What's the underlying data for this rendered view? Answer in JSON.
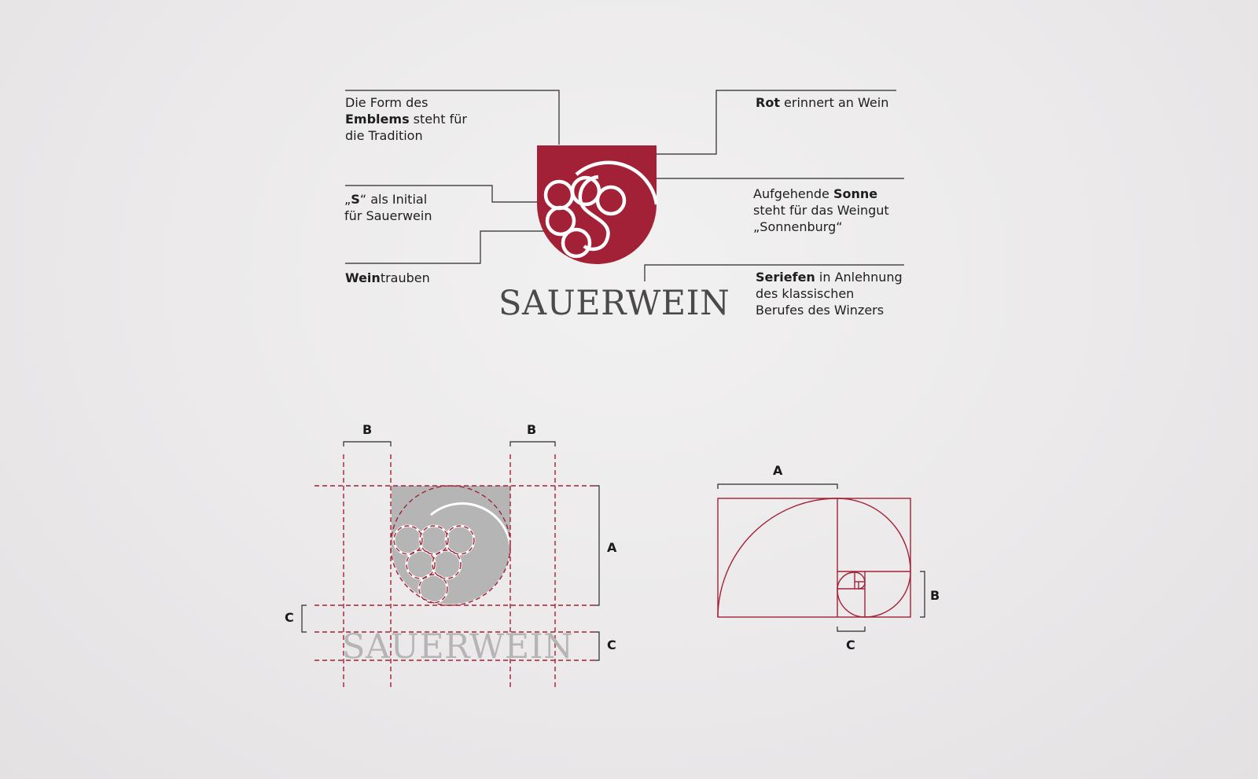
{
  "logo": {
    "wordmark": "SAUERWEIN",
    "colors": {
      "brand_red": "#a32136",
      "text_gray": "#4a4a4a",
      "guide_red": "#a32136",
      "construction_gray": "#b5b5b5"
    }
  },
  "annotations": {
    "emblem": {
      "line1": "Die Form des",
      "bold": "Emblems",
      "rest": " steht für",
      "line3": "die Tradition"
    },
    "initial": {
      "prefix": "„",
      "bold": "S",
      "rest": "“ als Initial",
      "line2": "für Sauerwein"
    },
    "grapes": {
      "bold": "Wein",
      "rest": "trauben"
    },
    "red": {
      "bold": "Rot",
      "rest": " erinnert an Wein"
    },
    "sun": {
      "line1_prefix": "Aufgehende ",
      "bold": "Sonne",
      "line2": "steht für das Weingut",
      "line3": "„Sonnenburg“"
    },
    "serif": {
      "bold": "Seriefen",
      "rest": " in Anlehnung",
      "line2": "des klassischen",
      "line3": "Berufes des Winzers"
    }
  },
  "construction": {
    "labels": {
      "b_left": "B",
      "b_right": "B",
      "a": "A",
      "c_left": "C",
      "c_right": "C"
    },
    "wordmark": "SAUERWEIN"
  },
  "golden_ratio": {
    "labels": {
      "a": "A",
      "b": "B",
      "c": "C"
    }
  }
}
